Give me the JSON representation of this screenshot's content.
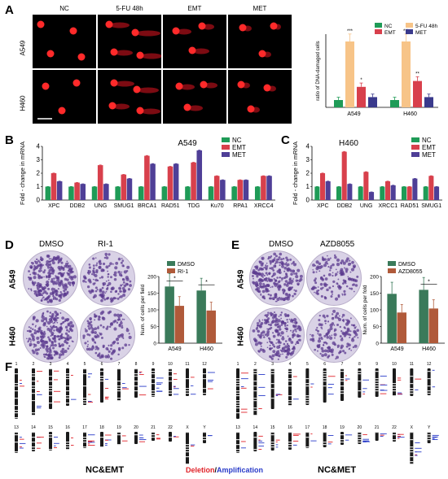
{
  "panels": {
    "A": {
      "letter": "A",
      "columns": [
        "NC",
        "5-FU 48h",
        "EMT",
        "MET"
      ],
      "rows": [
        "A549",
        "H460"
      ]
    },
    "B": {
      "letter": "B",
      "title": "A549"
    },
    "C": {
      "letter": "C",
      "title": "H460"
    },
    "D": {
      "letter": "D",
      "columns": [
        "DMSO",
        "RI-1"
      ],
      "rows": [
        "A549",
        "H460"
      ]
    },
    "E": {
      "letter": "E",
      "columns": [
        "DMSO",
        "AZD8055"
      ],
      "rows": [
        "A549",
        "H460"
      ]
    },
    "F": {
      "letter": "F",
      "left_label": "NC&EMT",
      "right_label": "NC&MET",
      "legend_deletion": "Deletion",
      "legend_slash": "/",
      "legend_amplification": "Amplification",
      "chrom_top": [
        "1",
        "2",
        "3",
        "4",
        "5",
        "6",
        "7",
        "8",
        "9",
        "10",
        "11",
        "12"
      ],
      "chrom_bottom": [
        "13",
        "14",
        "15",
        "16",
        "17",
        "18",
        "19",
        "20",
        "21",
        "22",
        "X",
        "Y"
      ]
    }
  },
  "colors": {
    "green": "#1f9b57",
    "red": "#d8404c",
    "navy": "#3a3a8c",
    "orange": "#f7c488",
    "purple": "#4f3f97",
    "dmso": "#3a7a5a",
    "treat": "#b05a3a"
  },
  "chart_data": [
    {
      "id": "A_bar",
      "type": "bar",
      "ylabel": "ratio of DNA-damaged cells",
      "categories": [
        "A549",
        "H460"
      ],
      "legend": [
        "NC",
        "5-FU 48h",
        "EMT",
        "MET"
      ],
      "series": [
        {
          "name": "NC",
          "values": [
            0.05,
            0.05
          ]
        },
        {
          "name": "5-FU 48h",
          "values": [
            0.45,
            0.45
          ]
        },
        {
          "name": "EMT",
          "values": [
            0.14,
            0.18
          ]
        },
        {
          "name": "MET",
          "values": [
            0.07,
            0.07
          ]
        }
      ],
      "ylim": [
        0,
        0.5
      ],
      "annotations": [
        "***",
        "*",
        "***",
        "**"
      ]
    },
    {
      "id": "B_bar",
      "type": "bar",
      "title": "A549",
      "ylabel": "Fold - change  in  mRNA",
      "categories": [
        "XPC",
        "DDB2",
        "UNG",
        "SMUG1",
        "BRCA1",
        "RAD51",
        "TDG",
        "Ku70",
        "RPA1",
        "XRCC4"
      ],
      "legend": [
        "NC",
        "EMT",
        "MET"
      ],
      "series": [
        {
          "name": "NC",
          "values": [
            1,
            1,
            1,
            1,
            1,
            1,
            1,
            1,
            1,
            1
          ]
        },
        {
          "name": "EMT",
          "values": [
            2.0,
            1.3,
            2.6,
            1.9,
            3.3,
            2.5,
            2.8,
            1.8,
            1.5,
            1.8
          ]
        },
        {
          "name": "MET",
          "values": [
            1.4,
            1.2,
            1.2,
            1.6,
            2.7,
            2.7,
            3.7,
            1.5,
            1.5,
            1.8
          ]
        }
      ],
      "ylim": [
        0,
        4
      ],
      "yticks": [
        "0",
        "1",
        "2",
        "3",
        "4"
      ]
    },
    {
      "id": "C_bar",
      "type": "bar",
      "title": "H460",
      "ylabel": "Fold - change  in  mRNA",
      "categories": [
        "XPC",
        "DDB2",
        "UNG",
        "XRCC1",
        "RAD51",
        "SMUG1"
      ],
      "legend": [
        "NC",
        "EMT",
        "MET"
      ],
      "series": [
        {
          "name": "NC",
          "values": [
            1,
            1,
            1,
            1,
            1,
            1
          ]
        },
        {
          "name": "EMT",
          "values": [
            2.0,
            3.6,
            2.1,
            1.4,
            1.0,
            1.8
          ]
        },
        {
          "name": "MET",
          "values": [
            1.4,
            1.2,
            0.6,
            1.1,
            1.6,
            1.0
          ]
        }
      ],
      "ylim": [
        0,
        4
      ],
      "yticks": [
        "0",
        "1",
        "2",
        "3",
        "4"
      ]
    },
    {
      "id": "D_bar",
      "type": "bar",
      "ylabel": "Num. of cells per field",
      "categories": [
        "A549",
        "H460"
      ],
      "legend": [
        "DMSO",
        "RI-1"
      ],
      "series": [
        {
          "name": "DMSO",
          "values": [
            170,
            158
          ]
        },
        {
          "name": "RI-1",
          "values": [
            112,
            98
          ]
        }
      ],
      "ylim": [
        0,
        200
      ],
      "yticks": [
        "0",
        "50",
        "100",
        "150",
        "200"
      ],
      "annotations": [
        "*",
        "*"
      ]
    },
    {
      "id": "E_bar",
      "type": "bar",
      "ylabel": "Num. of cells per fold",
      "categories": [
        "A549",
        "H460"
      ],
      "legend": [
        "DMSO",
        "AZD8055"
      ],
      "series": [
        {
          "name": "DMSO",
          "values": [
            148,
            160
          ]
        },
        {
          "name": "AZD8055",
          "values": [
            92,
            104
          ]
        }
      ],
      "ylim": [
        0,
        200
      ],
      "yticks": [
        "0",
        "50",
        "100",
        "150",
        "200"
      ],
      "annotations": [
        "*"
      ]
    }
  ]
}
